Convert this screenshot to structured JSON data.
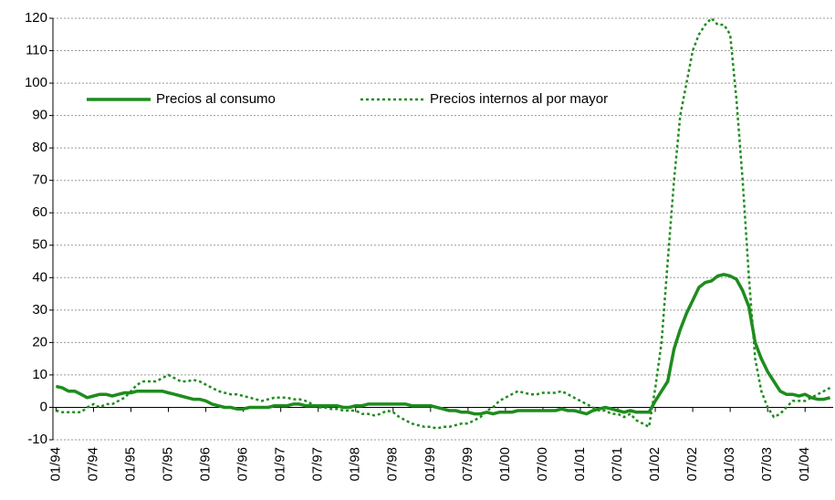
{
  "chart_data": {
    "type": "line",
    "categories": [
      "01/94",
      null,
      null,
      null,
      null,
      null,
      "07/94",
      null,
      null,
      null,
      null,
      null,
      "01/95",
      null,
      null,
      null,
      null,
      null,
      "07/95",
      null,
      null,
      null,
      null,
      null,
      "01/96",
      null,
      null,
      null,
      null,
      null,
      "07/96",
      null,
      null,
      null,
      null,
      null,
      "01/97",
      null,
      null,
      null,
      null,
      null,
      "07/97",
      null,
      null,
      null,
      null,
      null,
      "01/98",
      null,
      null,
      null,
      null,
      null,
      "07/98",
      null,
      null,
      null,
      null,
      null,
      "01/99",
      null,
      null,
      null,
      null,
      null,
      "07/99",
      null,
      null,
      null,
      null,
      null,
      "01/00",
      null,
      null,
      null,
      null,
      null,
      "07/00",
      null,
      null,
      null,
      null,
      null,
      "01/01",
      null,
      null,
      null,
      null,
      null,
      "07/01",
      null,
      null,
      null,
      null,
      null,
      "01/02",
      null,
      null,
      null,
      null,
      null,
      "07/02",
      null,
      null,
      null,
      null,
      null,
      "01/03",
      null,
      null,
      null,
      null,
      null,
      "07/03",
      null,
      null,
      null,
      null,
      null,
      "01/04",
      null,
      null,
      null,
      null
    ],
    "series": [
      {
        "name": "Precios al consumo",
        "color": "#1e8c1e",
        "dash": false,
        "values": [
          6.5,
          6,
          5,
          5,
          4,
          3,
          3.5,
          4,
          4,
          3.5,
          4,
          4.5,
          4.5,
          5,
          5,
          5,
          5,
          5,
          4.5,
          4,
          3.5,
          3,
          2.5,
          2.5,
          2,
          1,
          0.5,
          0,
          0,
          -0.5,
          -0.5,
          0,
          0,
          0,
          0,
          0.5,
          0.5,
          0.5,
          1,
          1,
          0.5,
          0.5,
          0.5,
          0.5,
          0.5,
          0.5,
          0,
          0,
          0.5,
          0.5,
          1,
          1,
          1,
          1,
          1,
          1,
          1,
          0.5,
          0.5,
          0.5,
          0.5,
          0,
          -0.5,
          -1,
          -1,
          -1.5,
          -1.5,
          -2,
          -2,
          -1.5,
          -2,
          -1.5,
          -1.5,
          -1.5,
          -1,
          -1,
          -1,
          -1,
          -1,
          -1,
          -1,
          -0.5,
          -1,
          -1,
          -1.5,
          -2,
          -1,
          -0.5,
          0,
          -0.5,
          -1,
          -1.5,
          -1,
          -1.5,
          -1.5,
          -1.5,
          2,
          5,
          8,
          18,
          24,
          29,
          33,
          37,
          38.5,
          39,
          40.5,
          41,
          40.5,
          39.5,
          36,
          31,
          20,
          15,
          11,
          8,
          5,
          4,
          4,
          3.5,
          4,
          3,
          2.5,
          2.5,
          3
        ]
      },
      {
        "name": "Precios internos al por mayor",
        "color": "#1e8c1e",
        "dash": true,
        "values": [
          -1,
          -1.5,
          -1.5,
          -1.5,
          -1.5,
          0,
          1,
          0,
          1,
          1,
          2,
          3,
          5,
          7,
          8,
          8,
          8,
          9,
          10,
          9,
          8,
          8,
          8.5,
          8,
          7,
          6,
          5,
          4.5,
          4,
          4,
          3.5,
          3,
          2.5,
          2,
          2.5,
          3,
          3,
          3,
          2.5,
          2.5,
          2,
          1,
          0,
          0,
          -0.5,
          -0.5,
          -1,
          -1,
          -1,
          -2,
          -2,
          -2.5,
          -2,
          -1,
          -1.5,
          -3,
          -4,
          -5,
          -5.5,
          -6,
          -6,
          -6.5,
          -6,
          -6,
          -5.5,
          -5,
          -5,
          -4,
          -3,
          -1,
          0,
          2,
          3,
          4,
          5,
          4.5,
          4,
          4,
          4.5,
          4.5,
          4.5,
          5,
          4,
          3,
          2,
          1,
          0,
          -1,
          -1,
          -2,
          -2,
          -3,
          -2,
          -4,
          -5,
          -6,
          6,
          20,
          45,
          70,
          90,
          100,
          110,
          115,
          118,
          120,
          118,
          118,
          115,
          95,
          70,
          40,
          15,
          5,
          0,
          -3,
          -2,
          0,
          2,
          2,
          2,
          3,
          4,
          5,
          6
        ]
      }
    ],
    "ylim": [
      -10,
      120
    ],
    "yticks": [
      -10,
      0,
      10,
      20,
      30,
      40,
      50,
      60,
      70,
      80,
      90,
      100,
      110,
      120
    ],
    "grid": true
  }
}
